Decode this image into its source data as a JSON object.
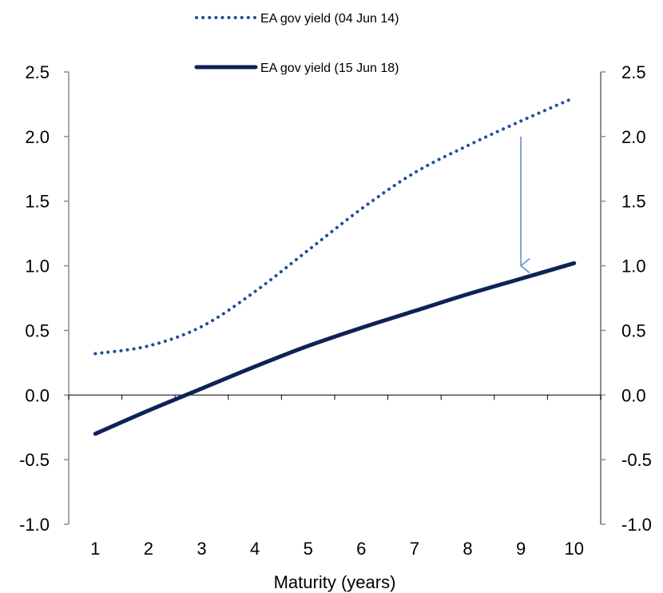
{
  "chart_data": {
    "type": "line",
    "title": "",
    "xlabel": "Maturity (years)",
    "ylabel": "",
    "x": [
      1,
      2,
      3,
      4,
      5,
      6,
      7,
      8,
      9,
      10
    ],
    "xlim": [
      0.5,
      10.5
    ],
    "ylim": [
      -1.0,
      2.5
    ],
    "y_ticks": [
      "-1.0",
      "-0.5",
      "0.0",
      "0.5",
      "1.0",
      "1.5",
      "2.0",
      "2.5"
    ],
    "x_ticks": [
      "1",
      "2",
      "3",
      "4",
      "5",
      "6",
      "7",
      "8",
      "9",
      "10"
    ],
    "grid": false,
    "legend_position": "top",
    "secondary_axis": "right",
    "series": [
      {
        "name": "EA gov yield (04 Jun 14)",
        "style": "dotted",
        "color": "#1f4e9a",
        "values": [
          0.32,
          0.38,
          0.53,
          0.8,
          1.12,
          1.44,
          1.72,
          1.93,
          2.12,
          2.3
        ]
      },
      {
        "name": "EA gov yield (15 Jun 18)",
        "style": "solid",
        "color": "#0d2257",
        "values": [
          -0.3,
          -0.12,
          0.05,
          0.22,
          0.38,
          0.52,
          0.65,
          0.78,
          0.9,
          1.02
        ]
      }
    ],
    "annotations": [
      {
        "type": "arrow",
        "x": 9,
        "from_y": 2.0,
        "to_y": 1.0,
        "color": "#7fa3d4"
      }
    ]
  }
}
